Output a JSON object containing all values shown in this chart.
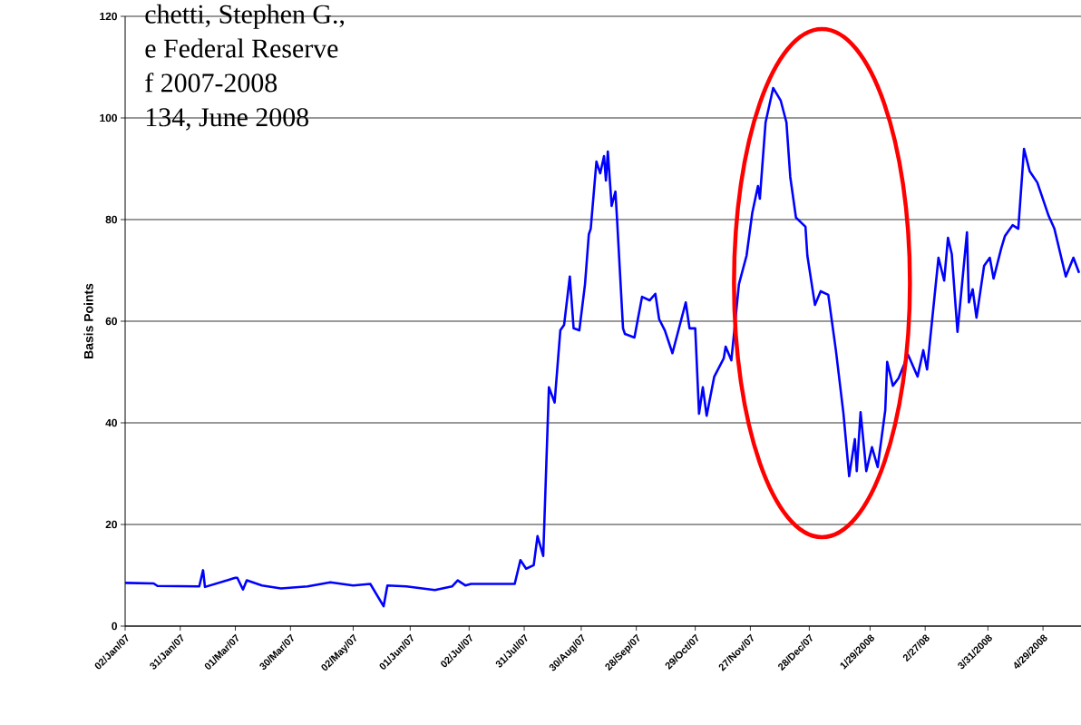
{
  "chart_data": {
    "type": "line",
    "ylabel": "Basis Points",
    "annotations": [
      "chetti, Stephen G.,",
      "e Federal Reserve",
      "f 2007-2008",
      "134, June 2008"
    ],
    "x": [
      "2007-01-02",
      "2007-01-17",
      "2007-01-19",
      "2007-02-10",
      "2007-02-12",
      "2007-02-13",
      "2007-03-01",
      "2007-03-02",
      "2007-03-05",
      "2007-03-07",
      "2007-03-15",
      "2007-03-25",
      "2007-04-08",
      "2007-04-20",
      "2007-05-02",
      "2007-05-11",
      "2007-05-18",
      "2007-05-20",
      "2007-05-30",
      "2007-06-14",
      "2007-06-23",
      "2007-06-26",
      "2007-06-30",
      "2007-07-03",
      "2007-07-26",
      "2007-07-29",
      "2007-08-01",
      "2007-08-05",
      "2007-08-07",
      "2007-08-10",
      "2007-08-13",
      "2007-08-16",
      "2007-08-19",
      "2007-08-21",
      "2007-08-24",
      "2007-08-26",
      "2007-08-29",
      "2007-09-01",
      "2007-09-03",
      "2007-09-04",
      "2007-09-07",
      "2007-09-09",
      "2007-09-11",
      "2007-09-12",
      "2007-09-13",
      "2007-09-15",
      "2007-09-17",
      "2007-09-18",
      "2007-09-21",
      "2007-09-22",
      "2007-09-27",
      "2007-10-01",
      "2007-10-05",
      "2007-10-08",
      "2007-10-10",
      "2007-10-13",
      "2007-10-17",
      "2007-10-24",
      "2007-10-26",
      "2007-10-29",
      "2007-10-31",
      "2007-11-02",
      "2007-11-04",
      "2007-11-08",
      "2007-11-13",
      "2007-11-14",
      "2007-11-17",
      "2007-11-21",
      "2007-11-25",
      "2007-11-28",
      "2007-12-01",
      "2007-12-02",
      "2007-12-05",
      "2007-12-09",
      "2007-12-13",
      "2007-12-16",
      "2007-12-18",
      "2007-12-21",
      "2007-12-26",
      "2007-12-27",
      "2007-12-31",
      "2008-01-03",
      "2008-01-07",
      "2008-01-11",
      "2008-01-15",
      "2008-01-18",
      "2008-01-21",
      "2008-01-22",
      "2008-01-24",
      "2008-01-27",
      "2008-01-30",
      "2008-02-02",
      "2008-02-06",
      "2008-02-07",
      "2008-02-10",
      "2008-02-13",
      "2008-02-18",
      "2008-02-23",
      "2008-02-26",
      "2008-02-28",
      "2008-03-05",
      "2008-03-08",
      "2008-03-10",
      "2008-03-12",
      "2008-03-15",
      "2008-03-20",
      "2008-03-21",
      "2008-03-23",
      "2008-03-25",
      "2008-03-29",
      "2008-04-01",
      "2008-04-03",
      "2008-04-07",
      "2008-04-09",
      "2008-04-13",
      "2008-04-16",
      "2008-04-19",
      "2008-04-22",
      "2008-04-26",
      "2008-05-02",
      "2008-05-05",
      "2008-05-11",
      "2008-05-15",
      "2008-05-18"
    ],
    "series": [
      {
        "color": "#0000ff",
        "values": [
          8.5,
          8.4,
          7.9,
          7.8,
          11,
          7.7,
          9.5,
          9.5,
          7.2,
          9.0,
          8.0,
          7.4,
          7.8,
          8.6,
          8.0,
          8.3,
          3.9,
          8.0,
          7.8,
          7.1,
          7.8,
          9.0,
          8.0,
          8.3,
          8.3,
          13.0,
          11.3,
          12.0,
          17.7,
          13.8,
          47,
          44,
          58.2,
          59.3,
          68.8,
          58.6,
          58.2,
          67.3,
          77.1,
          78.2,
          91.4,
          89.1,
          92.5,
          87.7,
          93.4,
          82.7,
          85.5,
          79.1,
          58.6,
          57.5,
          56.8,
          64.8,
          64.1,
          65.4,
          60.4,
          58.2,
          53.7,
          63.7,
          58.6,
          58.6,
          41.8,
          47,
          41.4,
          49.1,
          52.7,
          55,
          52.3,
          67.3,
          72.9,
          81.3,
          86.6,
          84.1,
          99.1,
          105.9,
          103.4,
          99.1,
          88.4,
          80.4,
          78.6,
          72.9,
          63.2,
          65.9,
          65.2,
          54.3,
          41.8,
          29.5,
          36.8,
          30.5,
          42.1,
          30.5,
          35.2,
          31.3,
          42.5,
          52,
          47.3,
          48.8,
          53.4,
          49.1,
          54.3,
          50.5,
          72.5,
          68,
          76.4,
          73.2,
          57.9,
          77.5,
          63.7,
          66.3,
          60.7,
          70.9,
          72.5,
          68.4,
          74.3,
          76.8,
          78.9,
          78.2,
          93.9,
          89.5,
          87.3,
          80.7,
          78.2,
          68.8,
          72.5,
          69.5
        ]
      }
    ],
    "xlim": [
      "2007-01-02",
      "2008-05-19"
    ],
    "xticks": [
      {
        "value": "2007-01-02",
        "label": "02/Jan/07"
      },
      {
        "value": "2007-01-31",
        "label": "31/Jan/07"
      },
      {
        "value": "2007-03-01",
        "label": "01/Mar/07"
      },
      {
        "value": "2007-03-30",
        "label": "30/Mar/07"
      },
      {
        "value": "2007-05-02",
        "label": "02/May/07"
      },
      {
        "value": "2007-06-01",
        "label": "01/Jun/07"
      },
      {
        "value": "2007-07-02",
        "label": "02/Jul/07"
      },
      {
        "value": "2007-07-31",
        "label": "31/Jul/07"
      },
      {
        "value": "2007-08-30",
        "label": "30/Aug/07"
      },
      {
        "value": "2007-09-28",
        "label": "28/Sep/07"
      },
      {
        "value": "2007-10-29",
        "label": "29/Oct/07"
      },
      {
        "value": "2007-11-27",
        "label": "27/Nov/07"
      },
      {
        "value": "2007-12-28",
        "label": "28/Dec/07"
      },
      {
        "value": "2008-01-29",
        "label": "1/29/2008"
      },
      {
        "value": "2008-02-27",
        "label": "2/27/08"
      },
      {
        "value": "2008-03-31",
        "label": "3/31/2008"
      },
      {
        "value": "2008-04-29",
        "label": "4/29/2008"
      }
    ],
    "ylim": [
      0,
      120
    ],
    "yticks": [
      0,
      20,
      40,
      60,
      80,
      100,
      120
    ],
    "grid": "y",
    "marker": "none",
    "line_style": "solid"
  }
}
